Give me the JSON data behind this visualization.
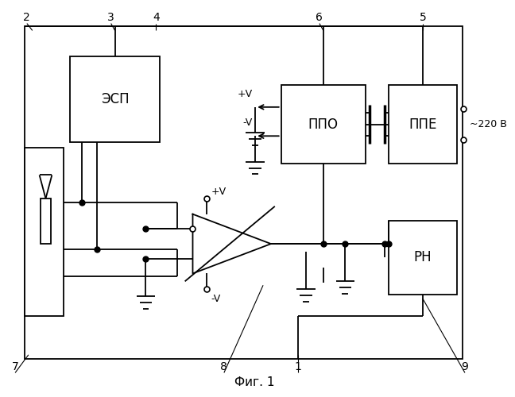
{
  "title": "Фиг. 1",
  "bg_color": "#ffffff",
  "line_color": "#000000",
  "box_labels": {
    "ESP": "ЭСП",
    "PPO": "ППО",
    "PPE": "ППЕ",
    "RN": "РН"
  }
}
